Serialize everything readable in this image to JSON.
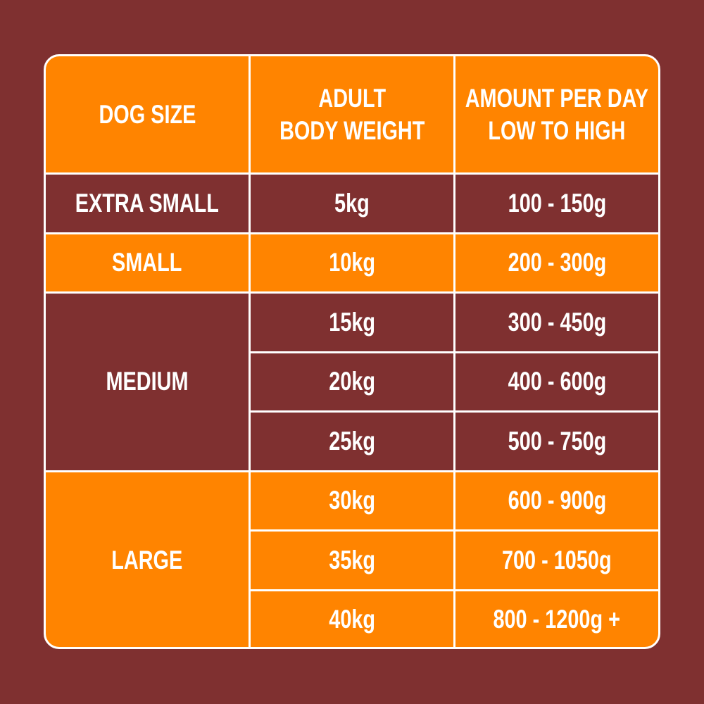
{
  "colors": {
    "background": "#7f3030",
    "orange": "#ff8400",
    "maroon": "#7f3030",
    "border": "#ffffff"
  },
  "headers": {
    "dog_size": "DOG SIZE",
    "weight_line1": "ADULT",
    "weight_line2": "BODY WEIGHT",
    "amount_line1": "AMOUNT PER DAY",
    "amount_line2": "LOW TO HIGH"
  },
  "sizes": [
    "EXTRA SMALL",
    "SMALL",
    "MEDIUM",
    "LARGE"
  ],
  "rows": [
    {
      "weight": "5kg",
      "amount": "100 - 150g"
    },
    {
      "weight": "10kg",
      "amount": "200 - 300g"
    },
    {
      "weight": "15kg",
      "amount": "300 - 450g"
    },
    {
      "weight": "20kg",
      "amount": "400 - 600g"
    },
    {
      "weight": "25kg",
      "amount": "500 - 750g"
    },
    {
      "weight": "30kg",
      "amount": "600 - 900g"
    },
    {
      "weight": "35kg",
      "amount": "700 - 1050g"
    },
    {
      "weight": "40kg",
      "amount": "800 - 1200g +"
    }
  ]
}
